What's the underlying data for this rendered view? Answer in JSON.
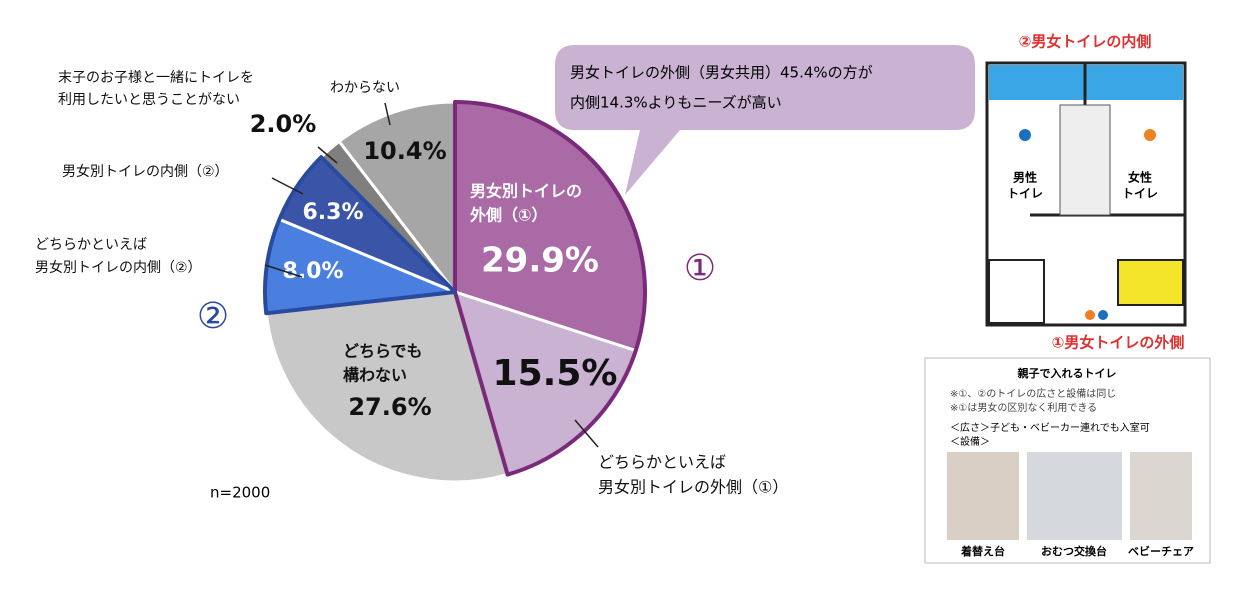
{
  "chart_data": {
    "type": "pie",
    "categories": [
      [
        "男女別トイレの",
        "外側（①）"
      ],
      [
        "どちらかといえば",
        "男女別トイレの外側（①）"
      ],
      [
        "どちらでも",
        "構わない"
      ],
      [
        "どちらかといえば",
        "男女別トイレの内側（②）"
      ],
      [
        "男女別トイレの内側（②）"
      ],
      [
        "末子のお子様と一緒にトイレを",
        "利用したいと思うことがない"
      ],
      [
        "わからない"
      ]
    ],
    "values": [
      29.9,
      15.5,
      27.6,
      8.0,
      6.3,
      2.0,
      10.4
    ],
    "value_labels": [
      "29.9%",
      "15.5%",
      "27.6%",
      "8.0%",
      "6.3%",
      "2.0%",
      "10.4%"
    ],
    "colors": [
      "#a96aa6",
      "#c9b2d2",
      "#c8c8c8",
      "#4a7fe0",
      "#3a55a8",
      "#7f7f7f",
      "#a6a6a6"
    ],
    "callout": [
      "男女トイレの外側（男女共用）45.4%の方が",
      "内側14.3%よりもニーズが高い"
    ],
    "marker_outer": "①",
    "marker_inner": "②",
    "n_label": "n=2000"
  },
  "diagram": {
    "inner_label": "②男女トイレの内側",
    "outer_label": "①男女トイレの外側",
    "male": [
      "男性",
      "トイレ"
    ],
    "female": [
      "女性",
      "トイレ"
    ],
    "box_title": "親子で入れるトイレ",
    "notes": [
      "※①、②のトイレの広さと設備は同じ",
      "※①は男女の区別なく利用できる"
    ],
    "space": "＜広さ＞子ども・ベビーカー連れでも入室可",
    "equipment": "＜設備＞",
    "photos": [
      "着替え台",
      "おむつ交換台",
      "ベビーチェア"
    ]
  }
}
